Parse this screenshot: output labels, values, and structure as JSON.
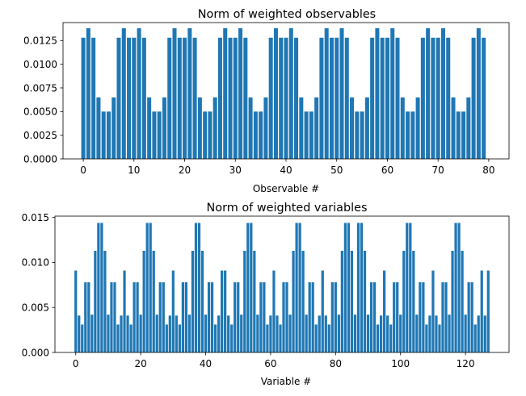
{
  "chart_data": [
    {
      "type": "bar",
      "title": "Norm of weighted observables",
      "xlabel": "Observable #",
      "ylabel": "",
      "xlim": [
        -4,
        84
      ],
      "ylim": [
        0,
        0.0144
      ],
      "xticks": [
        0,
        10,
        20,
        30,
        40,
        50,
        60,
        70,
        80
      ],
      "xtick_labels": [
        "0",
        "10",
        "20",
        "30",
        "40",
        "50",
        "60",
        "70",
        "80"
      ],
      "yticks": [
        0,
        0.0025,
        0.005,
        0.0075,
        0.01,
        0.0125
      ],
      "ytick_labels": [
        "0.0000",
        "0.0025",
        "0.0050",
        "0.0075",
        "0.0100",
        "0.0125"
      ],
      "color": "#1f77b4",
      "x": [
        0,
        1,
        2,
        3,
        4,
        5,
        6,
        7,
        8,
        9,
        10,
        11,
        12,
        13,
        14,
        15,
        16,
        17,
        18,
        19,
        20,
        21,
        22,
        23,
        24,
        25,
        26,
        27,
        28,
        29,
        30,
        31,
        32,
        33,
        34,
        35,
        36,
        37,
        38,
        39,
        40,
        41,
        42,
        43,
        44,
        45,
        46,
        47,
        48,
        49,
        50,
        51,
        52,
        53,
        54,
        55,
        56,
        57,
        58,
        59,
        60,
        61,
        62,
        63,
        64,
        65,
        66,
        67,
        68,
        69,
        70,
        71,
        72,
        73,
        74,
        75,
        76,
        77,
        78,
        79
      ],
      "values": [
        0.0128,
        0.0138,
        0.0128,
        0.0065,
        0.005,
        0.005,
        0.0065,
        0.0128,
        0.0138,
        0.0128,
        0.0128,
        0.0138,
        0.0128,
        0.0065,
        0.005,
        0.005,
        0.0065,
        0.0128,
        0.0138,
        0.0128,
        0.0128,
        0.0138,
        0.0128,
        0.0065,
        0.005,
        0.005,
        0.0065,
        0.0128,
        0.0138,
        0.0128,
        0.0128,
        0.0138,
        0.0128,
        0.0065,
        0.005,
        0.005,
        0.0065,
        0.0128,
        0.0138,
        0.0128,
        0.0128,
        0.0138,
        0.0128,
        0.0065,
        0.005,
        0.005,
        0.0065,
        0.0128,
        0.0138,
        0.0128,
        0.0128,
        0.0138,
        0.0128,
        0.0065,
        0.005,
        0.005,
        0.0065,
        0.0128,
        0.0138,
        0.0128,
        0.0128,
        0.0138,
        0.0128,
        0.0065,
        0.005,
        0.005,
        0.0065,
        0.0128,
        0.0138,
        0.0128,
        0.0128,
        0.0138,
        0.0128,
        0.0065,
        0.005,
        0.005,
        0.0065,
        0.0128,
        0.0138,
        0.0128
      ]
    },
    {
      "type": "bar",
      "title": "Norm of weighted variables",
      "xlabel": "Variable #",
      "ylabel": "",
      "xlim": [
        -6.4,
        133.4
      ],
      "ylim": [
        0,
        0.01515
      ],
      "xticks": [
        0,
        20,
        40,
        60,
        80,
        100,
        120
      ],
      "xtick_labels": [
        "0",
        "20",
        "40",
        "60",
        "80",
        "100",
        "120"
      ],
      "yticks": [
        0,
        0.005,
        0.01,
        0.015
      ],
      "ytick_labels": [
        "0.000",
        "0.005",
        "0.010",
        "0.015"
      ],
      "color": "#1f77b4",
      "x": [
        0,
        1,
        2,
        3,
        4,
        5,
        6,
        7,
        8,
        9,
        10,
        11,
        12,
        13,
        14,
        15,
        16,
        17,
        18,
        19,
        20,
        21,
        22,
        23,
        24,
        25,
        26,
        27,
        28,
        29,
        30,
        31,
        32,
        33,
        34,
        35,
        36,
        37,
        38,
        39,
        40,
        41,
        42,
        43,
        44,
        45,
        46,
        47,
        48,
        49,
        50,
        51,
        52,
        53,
        54,
        55,
        56,
        57,
        58,
        59,
        60,
        61,
        62,
        63,
        64,
        65,
        66,
        67,
        68,
        69,
        70,
        71,
        72,
        73,
        74,
        75,
        76,
        77,
        78,
        79,
        80,
        81,
        82,
        83,
        84,
        85,
        86,
        87,
        88,
        89,
        90,
        91,
        92,
        93,
        94,
        95,
        96,
        97,
        98,
        99,
        100,
        101,
        102,
        103,
        104,
        105,
        106,
        107,
        108,
        109,
        110,
        111,
        112,
        113,
        114,
        115,
        116,
        117,
        118,
        119,
        120,
        121,
        122,
        123,
        124,
        125,
        126,
        127
      ],
      "values": [
        0.0091,
        0.0041,
        0.0031,
        0.0078,
        0.0078,
        0.0042,
        0.0113,
        0.0144,
        0.0144,
        0.0113,
        0.0042,
        0.0078,
        0.0078,
        0.0031,
        0.0041,
        0.0091,
        0.0041,
        0.0031,
        0.0078,
        0.0078,
        0.0042,
        0.0113,
        0.0144,
        0.0144,
        0.0113,
        0.0042,
        0.0078,
        0.0078,
        0.0031,
        0.0041,
        0.0091,
        0.0041,
        0.0031,
        0.0078,
        0.0078,
        0.0042,
        0.0113,
        0.0144,
        0.0144,
        0.0113,
        0.0042,
        0.0078,
        0.0078,
        0.0031,
        0.0041,
        0.0091,
        0.0091,
        0.0041,
        0.0031,
        0.0078,
        0.0078,
        0.0042,
        0.0113,
        0.0144,
        0.0144,
        0.0113,
        0.0042,
        0.0078,
        0.0078,
        0.0031,
        0.0041,
        0.0091,
        0.0041,
        0.0031,
        0.0078,
        0.0078,
        0.0042,
        0.0113,
        0.0144,
        0.0144,
        0.0113,
        0.0042,
        0.0078,
        0.0078,
        0.0031,
        0.0041,
        0.0091,
        0.0041,
        0.0031,
        0.0078,
        0.0078,
        0.0042,
        0.0113,
        0.0144,
        0.0144,
        0.0113,
        0.0042,
        0.0144,
        0.0144,
        0.0113,
        0.0042,
        0.0078,
        0.0078,
        0.0031,
        0.0041,
        0.0091,
        0.0041,
        0.0031,
        0.0078,
        0.0078,
        0.0042,
        0.0113,
        0.0144,
        0.0144,
        0.0113,
        0.0042,
        0.0078,
        0.0078,
        0.0031,
        0.0041,
        0.0091,
        0.0041,
        0.0031,
        0.0078,
        0.0078,
        0.0042,
        0.0113,
        0.0144,
        0.0144,
        0.0113,
        0.0042,
        0.0078,
        0.0078,
        0.0031,
        0.0041,
        0.0091,
        0.0041,
        0.0091
      ]
    }
  ]
}
